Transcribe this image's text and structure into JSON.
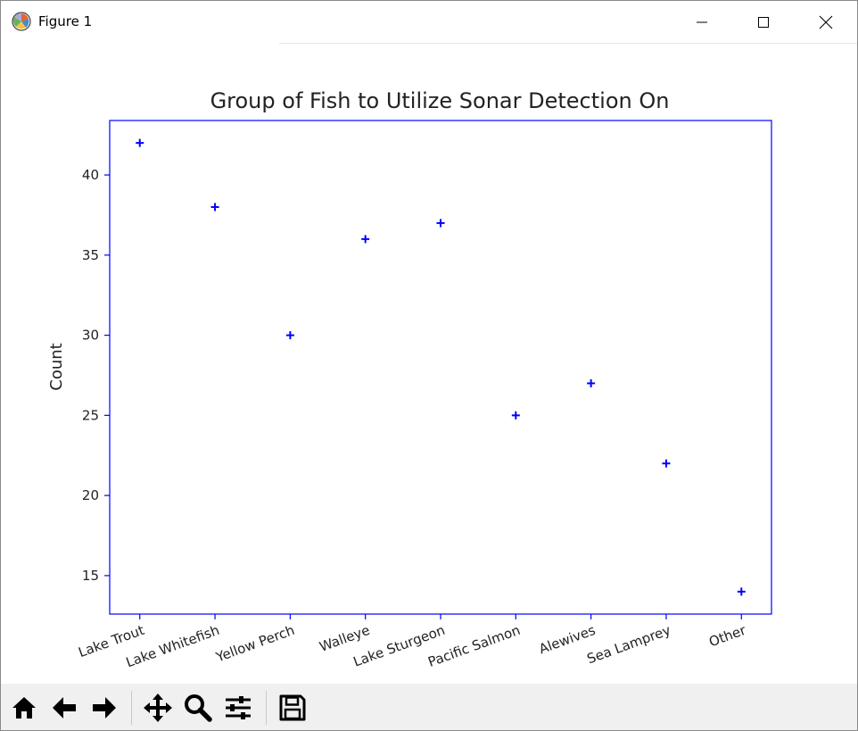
{
  "window": {
    "title": "Figure 1",
    "icons": [
      "matplotlib-icon",
      "minimize-icon",
      "maximize-icon",
      "close-icon"
    ]
  },
  "toolbar": {
    "buttons": [
      "home-icon",
      "back-icon",
      "forward-icon",
      "pan-icon",
      "zoom-icon",
      "configure-subplots-icon",
      "save-icon"
    ]
  },
  "colors": {
    "series": "#0000ff",
    "axes_frame": "#0000ff",
    "text": "#222222",
    "toolbar_bg": "#f0f0f0"
  },
  "chart_data": {
    "type": "scatter",
    "title": "Group of Fish to Utilize Sonar Detection On",
    "xlabel": "",
    "ylabel": "Count",
    "categories": [
      "Lake Trout",
      "Lake Whitefish",
      "Yellow Perch",
      "Walleye",
      "Lake Sturgeon",
      "Pacific Salmon",
      "Alewives",
      "Sea Lamprey",
      "Other"
    ],
    "values": [
      42,
      38,
      30,
      36,
      37,
      25,
      27,
      22,
      14
    ],
    "yticks": [
      15,
      20,
      25,
      30,
      35,
      40
    ],
    "ylim": [
      12.6,
      43.4
    ],
    "marker": "+",
    "grid": false,
    "xtick_rotation": -20
  }
}
